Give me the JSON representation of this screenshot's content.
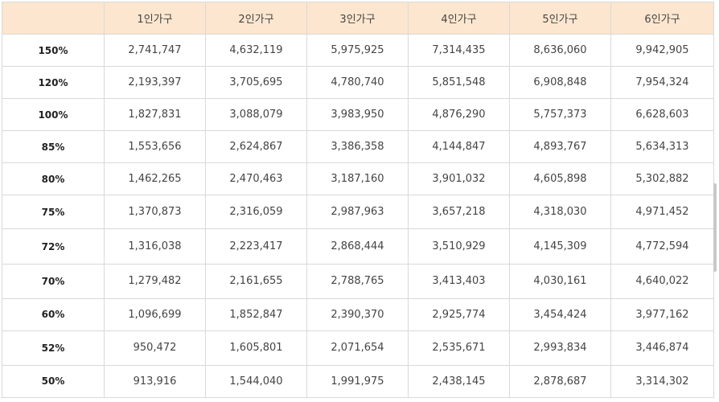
{
  "table": {
    "columns": [
      "",
      "1인가구",
      "2인가구",
      "3인가구",
      "4인가구",
      "5인가구",
      "6인가구"
    ],
    "rows": [
      {
        "label": "150%",
        "cells": [
          "2,741,747",
          "4,632,119",
          "5,975,925",
          "7,314,435",
          "8,636,060",
          "9,942,905"
        ]
      },
      {
        "label": "120%",
        "cells": [
          "2,193,397",
          "3,705,695",
          "4,780,740",
          "5,851,548",
          "6,908,848",
          "7,954,324"
        ]
      },
      {
        "label": "100%",
        "cells": [
          "1,827,831",
          "3,088,079",
          "3,983,950",
          "4,876,290",
          "5,757,373",
          "6,628,603"
        ]
      },
      {
        "label": "85%",
        "cells": [
          "1,553,656",
          "2,624,867",
          "3,386,358",
          "4,144,847",
          "4,893,767",
          "5,634,313"
        ]
      },
      {
        "label": "80%",
        "cells": [
          "1,462,265",
          "2,470,463",
          "3,187,160",
          "3,901,032",
          "4,605,898",
          "5,302,882"
        ]
      },
      {
        "label": "75%",
        "cells": [
          "1,370,873",
          "2,316,059",
          "2,987,963",
          "3,657,218",
          "4,318,030",
          "4,971,452"
        ]
      },
      {
        "label": "72%",
        "cells": [
          "1,316,038",
          "2,223,417",
          "2,868,444",
          "3,510,929",
          "4,145,309",
          "4,772,594"
        ]
      },
      {
        "label": "70%",
        "cells": [
          "1,279,482",
          "2,161,655",
          "2,788,765",
          "3,413,403",
          "4,030,161",
          "4,640,022"
        ]
      },
      {
        "label": "60%",
        "cells": [
          "1,096,699",
          "1,852,847",
          "2,390,370",
          "2,925,774",
          "3,454,424",
          "3,977,162"
        ]
      },
      {
        "label": "52%",
        "cells": [
          "950,472",
          "1,605,801",
          "2,071,654",
          "2,535,671",
          "2,993,834",
          "3,446,874"
        ]
      },
      {
        "label": "50%",
        "cells": [
          "913,916",
          "1,544,040",
          "1,991,975",
          "2,438,145",
          "2,878,687",
          "3,314,302"
        ]
      }
    ]
  },
  "colors": {
    "header_background": "#fde6cf",
    "border": "#d9d9d9",
    "scrollbar_thumb": "#c8c8c8"
  }
}
